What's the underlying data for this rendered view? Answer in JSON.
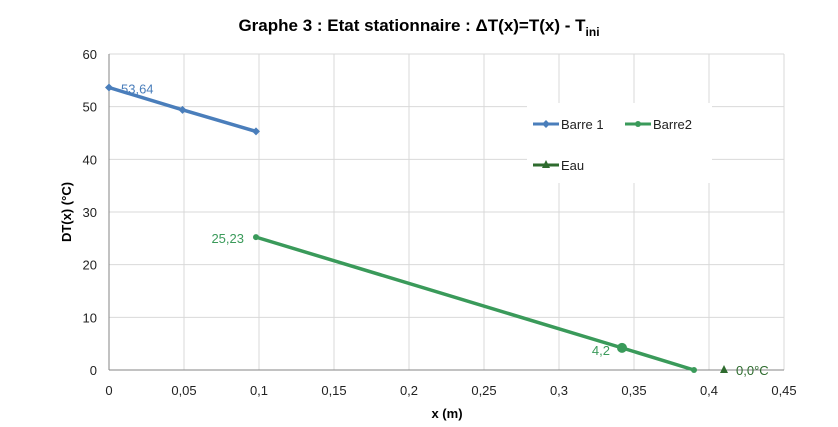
{
  "chart_data": {
    "type": "line",
    "title": {
      "main": "Graphe 3 : Etat stationnaire : ΔT(x)=T(x) - T",
      "subscript": "ini"
    },
    "xlabel": "x (m)",
    "ylabel": "DT(x) (°C)",
    "xlim": [
      0,
      0.45
    ],
    "ylim": [
      0,
      60
    ],
    "x_ticks": [
      "0",
      "0,05",
      "0,1",
      "0,15",
      "0,2",
      "0,25",
      "0,3",
      "0,35",
      "0,4",
      "0,45"
    ],
    "y_ticks": [
      "0",
      "10",
      "20",
      "30",
      "40",
      "50",
      "60"
    ],
    "grid": true,
    "legend_position": "top-right",
    "series": [
      {
        "name": "Barre 1",
        "color": "#4a7ebb",
        "marker": "diamond",
        "x": [
          0,
          0.049,
          0.098
        ],
        "y": [
          53.64,
          49.4,
          45.3
        ],
        "labels": [
          {
            "index": 0,
            "text": "53,64"
          }
        ]
      },
      {
        "name": "Barre2",
        "color": "#3a9a5a",
        "marker": "circle",
        "x": [
          0.098,
          0.342,
          0.39
        ],
        "y": [
          25.23,
          4.2,
          0
        ],
        "labels": [
          {
            "index": 0,
            "text": "25,23"
          },
          {
            "index": 1,
            "text": "4,2"
          }
        ]
      },
      {
        "name": "Eau",
        "color": "#2e6b2e",
        "marker": "triangle",
        "x": [
          0.41
        ],
        "y": [
          0
        ],
        "labels": [
          {
            "index": 0,
            "text": "0,0°C"
          }
        ]
      }
    ]
  }
}
